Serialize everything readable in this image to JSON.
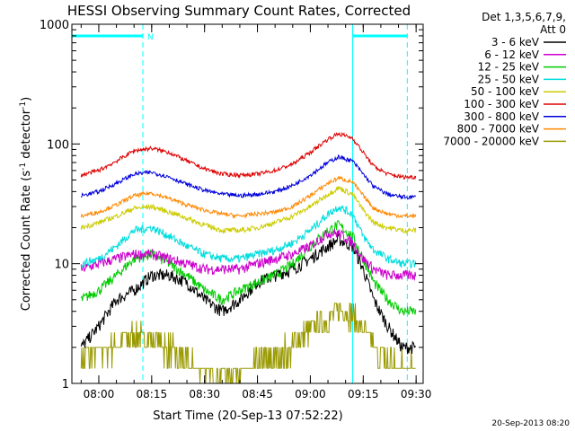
{
  "chart_data": {
    "type": "line",
    "title": "HESSI Observing Summary Count Rates, Corrected",
    "xlabel": "Start Time (20-Sep-13 07:52:22)",
    "ylabel_main": "Corrected Count Rate (s",
    "ylabel_sup1": "-1",
    "ylabel_mid": " detector",
    "ylabel_sup2": "-1",
    "ylabel_end": ")",
    "yscale": "log",
    "ylim": [
      1,
      1000
    ],
    "xlim": [
      "07:52:22",
      "09:32:00"
    ],
    "x_ticks": [
      "08:00",
      "08:15",
      "08:30",
      "08:45",
      "09:00",
      "09:15",
      "09:30"
    ],
    "y_ticks": [
      "1",
      "10",
      "100",
      "1000"
    ],
    "legend_header": [
      "Det 1,3,5,6,7,9,",
      "Att 0"
    ],
    "series": [
      {
        "name": "3 - 6 keV",
        "color": "#000000",
        "values": [
          2,
          3,
          5,
          6,
          8,
          8,
          7,
          5,
          4,
          5,
          7,
          8,
          9,
          11,
          14,
          16,
          14,
          9,
          5,
          3,
          2,
          2
        ]
      },
      {
        "name": "6 - 12 keV",
        "color": "#cc00cc",
        "values": [
          9,
          10,
          11,
          12,
          12,
          11,
          10,
          9,
          9,
          9,
          10,
          11,
          12,
          14,
          18,
          18,
          15,
          11,
          9,
          8,
          8,
          8
        ]
      },
      {
        "name": "12 - 25 keV",
        "color": "#00cc00",
        "values": [
          5,
          6,
          8,
          11,
          12,
          10,
          8,
          6,
          5,
          6,
          7,
          8,
          10,
          14,
          19,
          21,
          17,
          11,
          7,
          5,
          4,
          4
        ]
      },
      {
        "name": "25 - 50 keV",
        "color": "#00dddd",
        "values": [
          10,
          11,
          14,
          19,
          20,
          17,
          14,
          12,
          11,
          11,
          12,
          13,
          15,
          19,
          26,
          30,
          26,
          17,
          13,
          11,
          10,
          10
        ]
      },
      {
        "name": "50 - 100 keV",
        "color": "#cccc00",
        "values": [
          20,
          22,
          25,
          29,
          30,
          27,
          24,
          21,
          19,
          19,
          20,
          22,
          25,
          30,
          38,
          43,
          38,
          28,
          22,
          20,
          19,
          19
        ]
      },
      {
        "name": "100 - 300 keV",
        "color": "#dd0000",
        "values": [
          55,
          60,
          72,
          88,
          92,
          85,
          72,
          62,
          56,
          55,
          56,
          60,
          68,
          85,
          110,
          122,
          112,
          85,
          65,
          56,
          53,
          53
        ]
      },
      {
        "name": "300 - 800 keV",
        "color": "#0000dd",
        "values": [
          37,
          40,
          47,
          56,
          58,
          53,
          46,
          41,
          38,
          37,
          38,
          40,
          45,
          55,
          70,
          78,
          72,
          56,
          44,
          38,
          36,
          36
        ]
      },
      {
        "name": "800 - 7000 keV",
        "color": "#ff8800",
        "values": [
          25,
          27,
          31,
          37,
          39,
          35,
          31,
          28,
          26,
          25,
          26,
          27,
          30,
          37,
          47,
          52,
          48,
          37,
          29,
          26,
          25,
          25
        ]
      },
      {
        "name": "7000 - 20000 keV",
        "color": "#999900",
        "values": [
          1.6,
          1.8,
          2.1,
          2.6,
          2.4,
          2.0,
          1.5,
          1.2,
          1.1,
          1.2,
          1.4,
          1.7,
          2.1,
          2.8,
          3.5,
          4.2,
          3.8,
          2.8,
          2.0,
          1.6,
          1.5,
          1.5
        ]
      }
    ],
    "sample_times": [
      "07:55",
      "08:00",
      "08:05",
      "08:10",
      "08:15",
      "08:20",
      "08:25",
      "08:30",
      "08:35",
      "08:40",
      "08:45",
      "08:50",
      "08:55",
      "09:00",
      "09:05",
      "09:08",
      "09:12",
      "09:15",
      "09:18",
      "09:22",
      "09:26",
      "09:30"
    ],
    "night_flag_label": "N",
    "timestamp": "20-Sep-2013 08:20"
  }
}
